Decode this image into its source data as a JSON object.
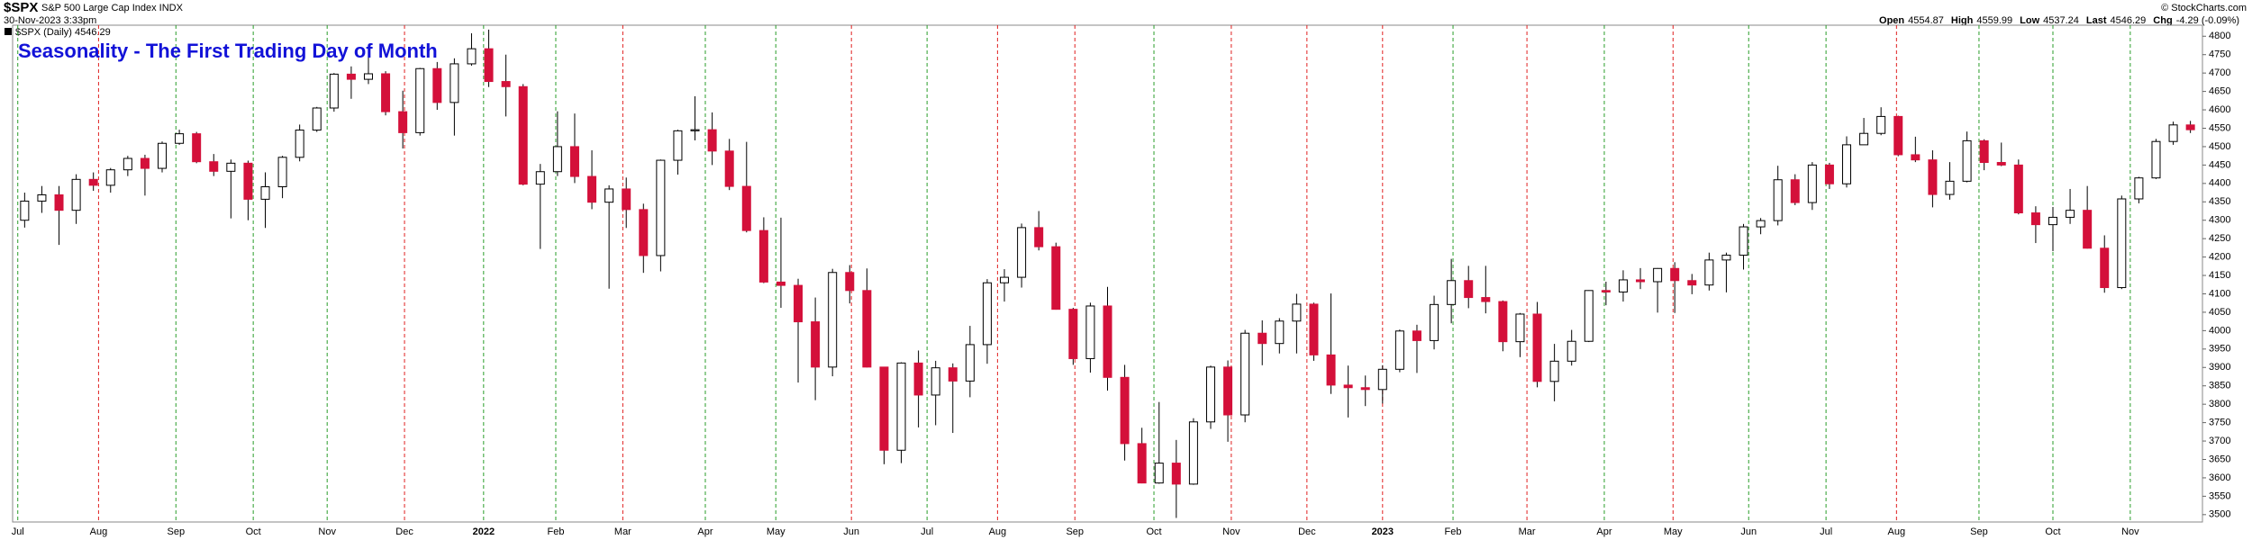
{
  "chart_data": {
    "type": "candlestick",
    "symbol": "$SPX",
    "name": "S&P 500 Large Cap Index INDX",
    "date": "30-Nov-2023 3:33pm",
    "legend": "$SPX (Daily) 4546.29",
    "credit": "© StockCharts.com",
    "quote": [
      {
        "label": "Open",
        "value": "4554.87"
      },
      {
        "label": "High",
        "value": "4559.99"
      },
      {
        "label": "Low",
        "value": "4537.24"
      },
      {
        "label": "Last",
        "value": "4546.29"
      },
      {
        "label": "Chg",
        "value": "-4.29 (-0.09%)"
      }
    ],
    "title": "Seasonality - The First Trading Day of Month",
    "up_color": "#ffffff",
    "down_color": "#d4103a",
    "wick_color": "#000000",
    "xlim": [
      -0.7,
      126.7
    ],
    "ylim": [
      3480,
      4830
    ],
    "yticks": [
      3500,
      3550,
      3600,
      3650,
      3700,
      3750,
      3800,
      3850,
      3900,
      3950,
      4000,
      4050,
      4100,
      4150,
      4200,
      4250,
      4300,
      4350,
      4400,
      4450,
      4500,
      4550,
      4600,
      4650,
      4700,
      4750,
      4800
    ],
    "grid": false,
    "months": [
      {
        "label": "Jul",
        "x": -0.4,
        "color": "#2a9d2a"
      },
      {
        "label": "Aug",
        "x": 4.3,
        "color": "#e02020"
      },
      {
        "label": "Sep",
        "x": 8.8,
        "color": "#2a9d2a"
      },
      {
        "label": "Oct",
        "x": 13.3,
        "color": "#2a9d2a"
      },
      {
        "label": "Nov",
        "x": 17.6,
        "color": "#2a9d2a"
      },
      {
        "label": "Dec",
        "x": 22.1,
        "color": "#e02020"
      },
      {
        "label": "2022",
        "x": 26.7,
        "color": "#2a9d2a"
      },
      {
        "label": "Feb",
        "x": 30.9,
        "color": "#2a9d2a"
      },
      {
        "label": "Mar",
        "x": 34.8,
        "color": "#e02020"
      },
      {
        "label": "Apr",
        "x": 39.6,
        "color": "#2a9d2a"
      },
      {
        "label": "May",
        "x": 43.7,
        "color": "#2a9d2a"
      },
      {
        "label": "Jun",
        "x": 48.1,
        "color": "#e02020"
      },
      {
        "label": "Jul",
        "x": 52.5,
        "color": "#2a9d2a"
      },
      {
        "label": "Aug",
        "x": 56.6,
        "color": "#e02020"
      },
      {
        "label": "Sep",
        "x": 61.1,
        "color": "#e02020"
      },
      {
        "label": "Oct",
        "x": 65.7,
        "color": "#2a9d2a"
      },
      {
        "label": "Nov",
        "x": 70.2,
        "color": "#e02020"
      },
      {
        "label": "Dec",
        "x": 74.6,
        "color": "#e02020"
      },
      {
        "label": "2023",
        "x": 79.0,
        "color": "#e02020"
      },
      {
        "label": "Feb",
        "x": 83.1,
        "color": "#2a9d2a"
      },
      {
        "label": "Mar",
        "x": 87.4,
        "color": "#e02020"
      },
      {
        "label": "Apr",
        "x": 91.9,
        "color": "#2a9d2a"
      },
      {
        "label": "May",
        "x": 95.9,
        "color": "#e02020"
      },
      {
        "label": "Jun",
        "x": 100.3,
        "color": "#2a9d2a"
      },
      {
        "label": "Jul",
        "x": 104.8,
        "color": "#2a9d2a"
      },
      {
        "label": "Aug",
        "x": 108.9,
        "color": "#e02020"
      },
      {
        "label": "Sep",
        "x": 113.7,
        "color": "#2a9d2a"
      },
      {
        "label": "Oct",
        "x": 118.0,
        "color": "#2a9d2a"
      },
      {
        "label": "Nov",
        "x": 122.5,
        "color": "#2a9d2a"
      }
    ],
    "open": [
      4300,
      4352,
      4369,
      4327,
      4411,
      4395,
      4437,
      4468,
      4441,
      4509,
      4535,
      4459,
      4433,
      4455,
      4357,
      4391,
      4471,
      4545,
      4605,
      4697,
      4683,
      4698,
      4595,
      4538,
      4712,
      4620,
      4725,
      4766,
      4677,
      4663,
      4398,
      4432,
      4500,
      4419,
      4349,
      4385,
      4329,
      4204,
      4463,
      4543,
      4546,
      4488,
      4392,
      4272,
      4132,
      4123,
      4024,
      3901,
      4158,
      4109,
      3901,
      3675,
      3912,
      3825,
      3899,
      3863,
      3962,
      4130,
      4145,
      4280,
      4228,
      4058,
      3924,
      4067,
      3873,
      3693,
      3586,
      3640,
      3583,
      3752,
      3901,
      3771,
      3993,
      3965,
      4026,
      4072,
      3934,
      3852,
      3845,
      3840,
      3895,
      3999,
      3973,
      4071,
      4136,
      4090,
      4079,
      3970,
      4045,
      3862,
      3917,
      3971,
      4109,
      4105,
      4138,
      4133,
      4169,
      4136,
      4124,
      4192,
      4205,
      4282,
      4299,
      4410,
      4348,
      4450,
      4399,
      4505,
      4536,
      4582,
      4478,
      4464,
      4370,
      4406,
      4516,
      4457,
      4450,
      4320,
      4288,
      4308,
      4327,
      4224,
      4117,
      4358,
      4415,
      4514,
      4559
    ],
    "high": [
      4375,
      4393,
      4393,
      4425,
      4430,
      4442,
      4475,
      4478,
      4514,
      4546,
      4540,
      4480,
      4465,
      4462,
      4430,
      4475,
      4560,
      4608,
      4700,
      4718,
      4743,
      4705,
      4652,
      4714,
      4730,
      4740,
      4808,
      4818,
      4750,
      4670,
      4453,
      4596,
      4590,
      4490,
      4395,
      4416,
      4345,
      4465,
      4546,
      4637,
      4593,
      4521,
      4513,
      4308,
      4307,
      4141,
      4090,
      4168,
      4178,
      4169,
      3900,
      3914,
      3946,
      3918,
      3911,
      4013,
      4140,
      4167,
      4291,
      4325,
      4239,
      4062,
      4076,
      4119,
      3907,
      3736,
      3806,
      3703,
      3762,
      3905,
      3919,
      4002,
      4028,
      4034,
      4100,
      4076,
      4101,
      3905,
      3878,
      3906,
      4003,
      4016,
      4095,
      4195,
      4176,
      4176,
      4082,
      4048,
      4078,
      3964,
      4002,
      4110,
      4133,
      4164,
      4170,
      4170,
      4186,
      4154,
      4212,
      4212,
      4290,
      4306,
      4448,
      4425,
      4458,
      4456,
      4528,
      4578,
      4607,
      4584,
      4527,
      4490,
      4458,
      4541,
      4520,
      4511,
      4465,
      4338,
      4336,
      4385,
      4393,
      4259,
      4367,
      4418,
      4521,
      4568,
      4570
    ],
    "low": [
      4280,
      4320,
      4233,
      4290,
      4380,
      4375,
      4420,
      4367,
      4430,
      4505,
      4455,
      4420,
      4305,
      4300,
      4279,
      4360,
      4460,
      4540,
      4595,
      4630,
      4670,
      4585,
      4495,
      4530,
      4600,
      4530,
      4720,
      4662,
      4582,
      4395,
      4222,
      4420,
      4401,
      4330,
      4114,
      4279,
      4157,
      4161,
      4424,
      4517,
      4450,
      4382,
      4267,
      4129,
      4062,
      3859,
      3811,
      3876,
      4074,
      3900,
      3637,
      3640,
      3737,
      3743,
      3722,
      3819,
      3910,
      4079,
      4117,
      4218,
      4057,
      3907,
      3886,
      3837,
      3647,
      3585,
      3584,
      3491,
      3581,
      3733,
      3698,
      3751,
      3906,
      3938,
      3938,
      3918,
      3828,
      3764,
      3795,
      3802,
      3887,
      3885,
      3949,
      4020,
      4061,
      4047,
      3944,
      3928,
      3846,
      3808,
      3905,
      3969,
      4069,
      4079,
      4113,
      4049,
      4048,
      4099,
      4109,
      4104,
      4166,
      4262,
      4286,
      4341,
      4328,
      4385,
      4389,
      4514,
      4531,
      4474,
      4458,
      4335,
      4356,
      4403,
      4436,
      4447,
      4316,
      4238,
      4216,
      4290,
      4223,
      4103,
      4113,
      4346,
      4412,
      4505,
      4537
    ],
    "close": [
      4352,
      4369,
      4327,
      4411,
      4395,
      4437,
      4468,
      4441,
      4509,
      4535,
      4459,
      4433,
      4455,
      4357,
      4391,
      4471,
      4545,
      4605,
      4697,
      4683,
      4698,
      4595,
      4538,
      4712,
      4620,
      4725,
      4766,
      4677,
      4663,
      4398,
      4432,
      4500,
      4419,
      4349,
      4385,
      4329,
      4204,
      4463,
      4543,
      4546,
      4488,
      4392,
      4272,
      4132,
      4123,
      4024,
      3901,
      4158,
      4109,
      3901,
      3675,
      3912,
      3825,
      3899,
      3863,
      3962,
      4130,
      4145,
      4280,
      4228,
      4058,
      3924,
      4067,
      3873,
      3693,
      3586,
      3640,
      3583,
      3752,
      3901,
      3771,
      3993,
      3965,
      4026,
      4072,
      3934,
      3852,
      3845,
      3840,
      3895,
      3999,
      3973,
      4071,
      4136,
      4090,
      4079,
      3970,
      4045,
      3862,
      3917,
      3971,
      4109,
      4105,
      4138,
      4133,
      4169,
      4136,
      4124,
      4192,
      4205,
      4282,
      4299,
      4410,
      4348,
      4450,
      4399,
      4505,
      4536,
      4582,
      4478,
      4464,
      4370,
      4406,
      4516,
      4457,
      4450,
      4320,
      4288,
      4308,
      4327,
      4224,
      4117,
      4358,
      4415,
      4514,
      4559,
      4546
    ]
  }
}
